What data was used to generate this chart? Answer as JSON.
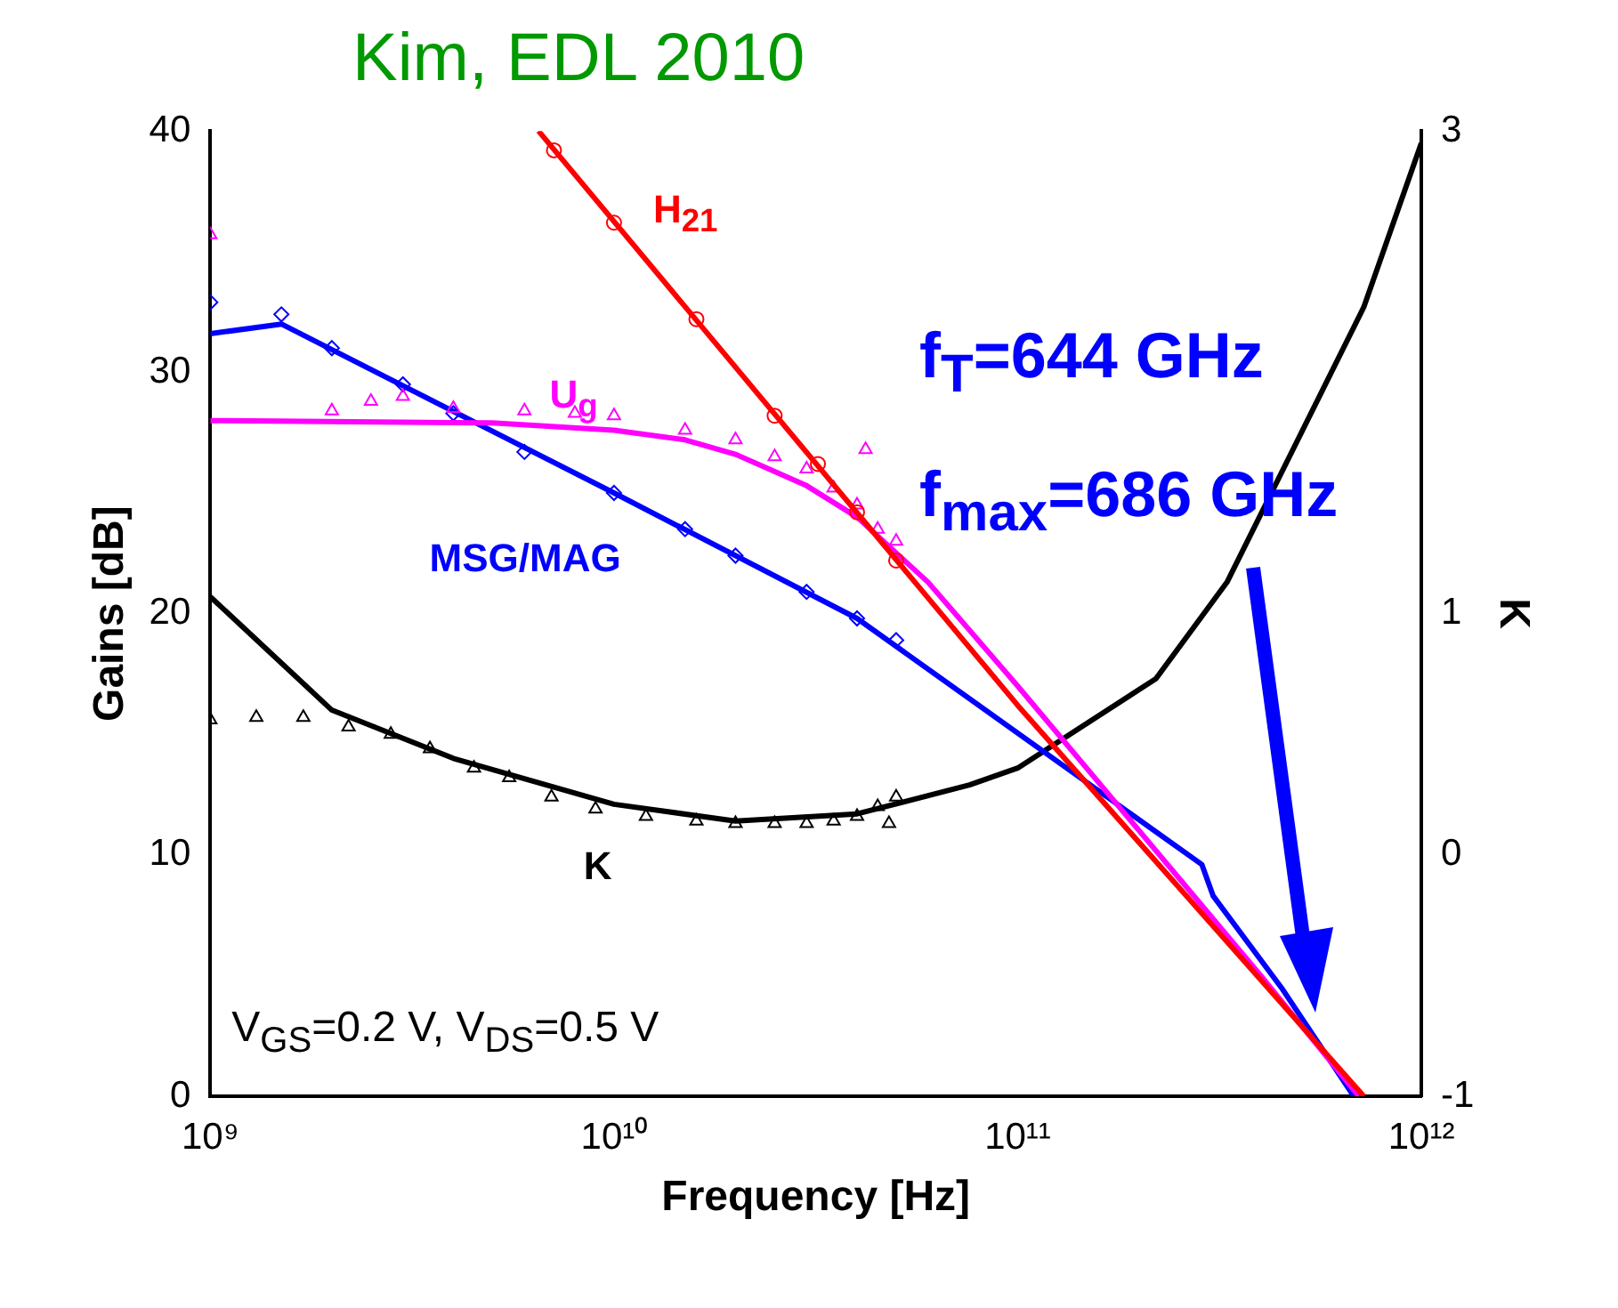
{
  "chart_data": {
    "type": "line",
    "title": "Kim, EDL 2010",
    "xlabel": "Frequency [Hz]",
    "ylabel": "Gains [dB]",
    "y2label": "K",
    "log": "x",
    "grid": false,
    "legend": false,
    "xlim": [
      1000000000.0,
      1000000000000.0
    ],
    "xticks": [
      {
        "value": 1000000000.0,
        "label": "10⁹"
      },
      {
        "value": 10000000000.0,
        "label": "10¹⁰"
      },
      {
        "value": 100000000000.0,
        "label": "10¹¹"
      },
      {
        "value": 1000000000000.0,
        "label": "10¹²"
      }
    ],
    "ylim": [
      0,
      40
    ],
    "yticks": [
      0,
      10,
      20,
      30,
      40
    ],
    "y2lim": [
      -1,
      3
    ],
    "y2ticks": [
      -1,
      0,
      1,
      3
    ],
    "series": [
      {
        "name": "H$_{21}$",
        "marker": "none",
        "color": "#ff0000",
        "x": [
          6500000000.0,
          100000000000.0,
          720000000000.0
        ],
        "values": [
          40,
          16.2,
          0
        ]
      },
      {
        "type": "scatter",
        "marker": "circle",
        "color": "#ff0000",
        "x": [
          7100000000.0,
          10000000000.0,
          16000000000.0,
          25000000000.0,
          32000000000.0,
          40000000000.0,
          50000000000.0
        ],
        "values": [
          39.2,
          36.2,
          32.2,
          28.2,
          26.2,
          24.2,
          22.2
        ]
      },
      {
        "name": "U$_{g}$",
        "marker": "none",
        "color": "#ff00ff",
        "x": [
          1000000000.0,
          5000000000.0,
          10000000000.0,
          15000000000.0,
          20000000000.0,
          30000000000.0,
          40000000000.0,
          60000000000.0,
          100000000000.0,
          200000000000.0,
          400000000000.0,
          700000000000.0
        ],
        "values": [
          28,
          27.9,
          27.6,
          27.2,
          26.6,
          25.3,
          24,
          21.3,
          17,
          11,
          5,
          0
        ]
      },
      {
        "type": "scatter",
        "marker": "triangle",
        "color": "#ff00ff",
        "x": [
          1000000000.0,
          2000000000.0,
          2500000000.0,
          3000000000.0,
          4000000000.0,
          6000000000.0,
          8000000000.0,
          10000000000.0,
          15000000000.0,
          20000000000.0,
          25000000000.0,
          30000000000.0,
          35000000000.0,
          40000000000.0,
          42000000000.0,
          45000000000.0,
          50000000000.0
        ],
        "values": [
          35.7,
          28.4,
          28.8,
          29,
          28.5,
          28.4,
          28.3,
          28.2,
          27.6,
          27.2,
          26.5,
          26,
          25.2,
          24.5,
          26.8,
          23.5,
          23
        ]
      },
      {
        "name": "MSG/MAG",
        "marker": "none",
        "color": "#0000ff",
        "x": [
          1000000000.0,
          1500000000.0,
          10000000000.0,
          40000000000.0,
          286000000000.0,
          305000000000.0,
          450000000000.0,
          680000000000.0
        ],
        "values": [
          31.6,
          32,
          25,
          19.8,
          9.6,
          8.3,
          4.5,
          0
        ]
      },
      {
        "type": "scatter",
        "marker": "diamond",
        "color": "#0000ff",
        "x": [
          1000000000.0,
          1500000000.0,
          2000000000.0,
          3000000000.0,
          4000000000.0,
          6000000000.0,
          10000000000.0,
          15000000000.0,
          20000000000.0,
          30000000000.0,
          40000000000.0,
          50000000000.0
        ],
        "values": [
          32.9,
          32.4,
          31,
          29.5,
          28.3,
          26.7,
          25,
          23.5,
          22.4,
          20.9,
          19.8,
          18.9
        ]
      },
      {
        "name": "K",
        "marker": "none",
        "color": "#000000",
        "axis": "y2",
        "x": [
          1000000000.0,
          2000000000.0,
          4000000000.0,
          10000000000.0,
          20000000000.0,
          40000000000.0,
          76000000000.0,
          100000000000.0,
          220000000000.0,
          330000000000.0,
          720000000000.0,
          1000000000000.0
        ],
        "values": [
          1.07,
          0.6,
          0.4,
          0.21,
          0.14,
          0.17,
          0.29,
          0.36,
          0.73,
          1.13,
          2.27,
          2.95
        ]
      },
      {
        "type": "scatter",
        "marker": "triangle",
        "color": "#000000",
        "axis": "y2",
        "x": [
          1000000000.0,
          1300000000.0,
          1700000000.0,
          2200000000.0,
          2800000000.0,
          3500000000.0,
          4500000000.0,
          5500000000.0,
          7000000000.0,
          9000000000.0,
          12000000000.0,
          16000000000.0,
          20000000000.0,
          25000000000.0,
          30000000000.0,
          35000000000.0,
          40000000000.0,
          45000000000.0,
          48000000000.0,
          50000000000.0
        ],
        "values": [
          0.56,
          0.57,
          0.57,
          0.53,
          0.5,
          0.44,
          0.36,
          0.32,
          0.24,
          0.19,
          0.16,
          0.14,
          0.13,
          0.13,
          0.13,
          0.14,
          0.16,
          0.2,
          0.13,
          0.24
        ]
      }
    ],
    "annotations": [
      "f$_{T}$=644 GHz",
      "f$_{max}$=686 GHz",
      "V$_{GS}$=0.2 V, V$_{DS}$=0.5 V"
    ]
  }
}
